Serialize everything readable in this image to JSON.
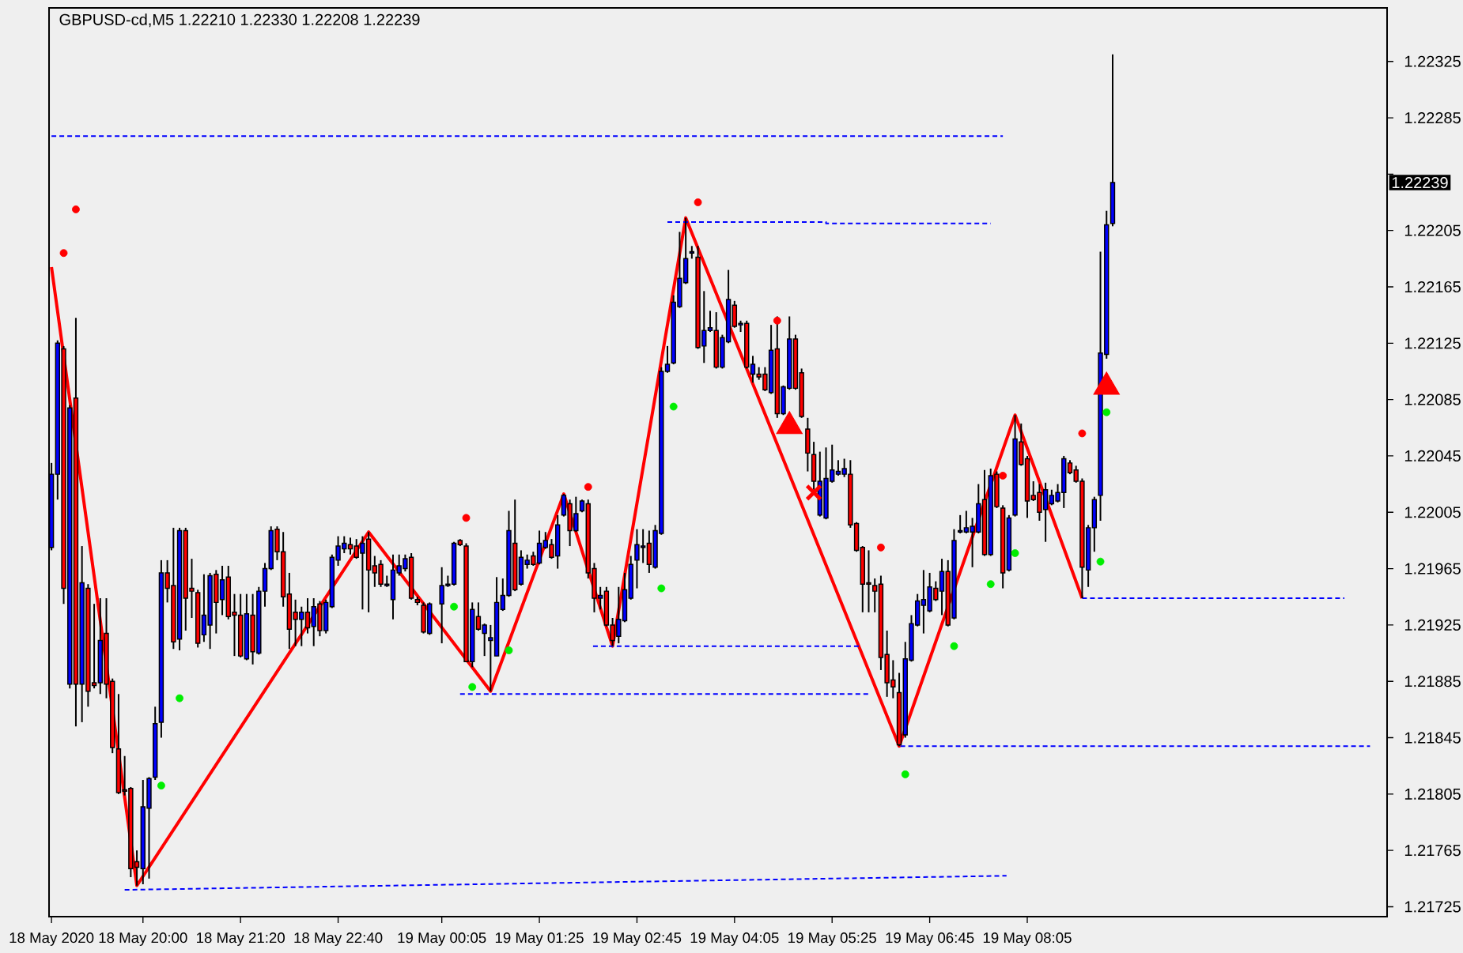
{
  "chart_data": {
    "type": "candlestick",
    "title": "GBPUSD-cd,M5  1.22210 1.22330 1.22208 1.22239",
    "annotations": [
      "1.22239"
    ],
    "xlim": [
      "2020-05-18T18:43",
      "2020-05-19T13:00"
    ],
    "ylim": [
      1.21718,
      1.22363
    ],
    "xticks": [
      {
        "value": "2020-05-18T18:45",
        "label": "18 May 2020"
      },
      {
        "value": "2020-05-18T20:00",
        "label": "18 May 20:00"
      },
      {
        "value": "2020-05-18T21:20",
        "label": "18 May 21:20"
      },
      {
        "value": "2020-05-18T22:40",
        "label": "18 May 22:40"
      },
      {
        "value": "2020-05-19T00:05",
        "label": "19 May 00:05"
      },
      {
        "value": "2020-05-19T01:25",
        "label": "19 May 01:25"
      },
      {
        "value": "2020-05-19T02:45",
        "label": "19 May 02:45"
      },
      {
        "value": "2020-05-19T04:05",
        "label": "19 May 04:05"
      },
      {
        "value": "2020-05-19T05:25",
        "label": "19 May 05:25"
      },
      {
        "value": "2020-05-19T06:45",
        "label": "19 May 06:45"
      },
      {
        "value": "2020-05-19T08:05",
        "label": "19 May 08:05"
      }
    ],
    "yticks": [
      1.21725,
      1.21765,
      1.21805,
      1.21845,
      1.21885,
      1.21925,
      1.21965,
      1.22005,
      1.22045,
      1.22085,
      1.22125,
      1.22165,
      1.22205,
      {
        "value": 1.22245,
        "label": null
      },
      1.22285,
      1.22325
    ],
    "series": [
      {
        "color": "#000000",
        "x": [
          "2020-05-18T18:45",
          "2020-05-18T18:50",
          "2020-05-18T18:55",
          "2020-05-18T19:00",
          "2020-05-18T19:05",
          "2020-05-18T19:10",
          "2020-05-18T19:15",
          "2020-05-18T19:20",
          "2020-05-18T19:25",
          "2020-05-18T19:30",
          "2020-05-18T19:35",
          "2020-05-18T19:40",
          "2020-05-18T19:45",
          "2020-05-18T19:50",
          "2020-05-18T19:55",
          "2020-05-18T20:00",
          "2020-05-18T20:05",
          "2020-05-18T20:10",
          "2020-05-18T20:15",
          "2020-05-18T20:20",
          "2020-05-18T20:25",
          "2020-05-18T20:30",
          "2020-05-18T20:35",
          "2020-05-18T20:40",
          "2020-05-18T20:45",
          "2020-05-18T20:50",
          "2020-05-18T20:55",
          "2020-05-18T21:00",
          "2020-05-18T21:05",
          "2020-05-18T21:10",
          "2020-05-18T21:15",
          "2020-05-18T21:20",
          "2020-05-18T21:25",
          "2020-05-18T21:30",
          "2020-05-18T21:35",
          "2020-05-18T21:40",
          "2020-05-18T21:45",
          "2020-05-18T21:50",
          "2020-05-18T21:55",
          "2020-05-18T22:00",
          "2020-05-18T22:05",
          "2020-05-18T22:10",
          "2020-05-18T22:15",
          "2020-05-18T22:20",
          "2020-05-18T22:25",
          "2020-05-18T22:30",
          "2020-05-18T22:35",
          "2020-05-18T22:40",
          "2020-05-18T22:45",
          "2020-05-18T22:50",
          "2020-05-18T22:55",
          "2020-05-18T23:00",
          "2020-05-18T23:05",
          "2020-05-18T23:10",
          "2020-05-18T23:15",
          "2020-05-18T23:20",
          "2020-05-18T23:25",
          "2020-05-18T23:30",
          "2020-05-18T23:35",
          "2020-05-18T23:40",
          "2020-05-18T23:45",
          "2020-05-18T23:50",
          "2020-05-18T23:55",
          "2020-05-19T00:05",
          "2020-05-19T00:10",
          "2020-05-19T00:15",
          "2020-05-19T00:20",
          "2020-05-19T00:25",
          "2020-05-19T00:30",
          "2020-05-19T00:35",
          "2020-05-19T00:40",
          "2020-05-19T00:45",
          "2020-05-19T00:50",
          "2020-05-19T00:55",
          "2020-05-19T01:00",
          "2020-05-19T01:05",
          "2020-05-19T01:10",
          "2020-05-19T01:15",
          "2020-05-19T01:20",
          "2020-05-19T01:25",
          "2020-05-19T01:30",
          "2020-05-19T01:35",
          "2020-05-19T01:40",
          "2020-05-19T01:45",
          "2020-05-19T01:50",
          "2020-05-19T01:55",
          "2020-05-19T02:00",
          "2020-05-19T02:05",
          "2020-05-19T02:10",
          "2020-05-19T02:15",
          "2020-05-19T02:20",
          "2020-05-19T02:25",
          "2020-05-19T02:30",
          "2020-05-19T02:35",
          "2020-05-19T02:40",
          "2020-05-19T02:45",
          "2020-05-19T02:50",
          "2020-05-19T02:55",
          "2020-05-19T03:00",
          "2020-05-19T03:05",
          "2020-05-19T03:10",
          "2020-05-19T03:15",
          "2020-05-19T03:20",
          "2020-05-19T03:25",
          "2020-05-19T03:30",
          "2020-05-19T03:35",
          "2020-05-19T03:40",
          "2020-05-19T03:45",
          "2020-05-19T03:50",
          "2020-05-19T03:55",
          "2020-05-19T04:00",
          "2020-05-19T04:05",
          "2020-05-19T04:10",
          "2020-05-19T04:15",
          "2020-05-19T04:20",
          "2020-05-19T04:25",
          "2020-05-19T04:30",
          "2020-05-19T04:35",
          "2020-05-19T04:40",
          "2020-05-19T04:45",
          "2020-05-19T04:50",
          "2020-05-19T04:55",
          "2020-05-19T05:00",
          "2020-05-19T05:05",
          "2020-05-19T05:10",
          "2020-05-19T05:15",
          "2020-05-19T05:20",
          "2020-05-19T05:25",
          "2020-05-19T05:30",
          "2020-05-19T05:35",
          "2020-05-19T05:40",
          "2020-05-19T05:45",
          "2020-05-19T05:50",
          "2020-05-19T05:55",
          "2020-05-19T06:00",
          "2020-05-19T06:05",
          "2020-05-19T06:10",
          "2020-05-19T06:15",
          "2020-05-19T06:20",
          "2020-05-19T06:25",
          "2020-05-19T06:30",
          "2020-05-19T06:35",
          "2020-05-19T06:40",
          "2020-05-19T06:45",
          "2020-05-19T06:50",
          "2020-05-19T06:55",
          "2020-05-19T07:00",
          "2020-05-19T07:05",
          "2020-05-19T07:10",
          "2020-05-19T07:15",
          "2020-05-19T07:20",
          "2020-05-19T07:25",
          "2020-05-19T07:30",
          "2020-05-19T07:35",
          "2020-05-19T07:40",
          "2020-05-19T07:45",
          "2020-05-19T07:50",
          "2020-05-19T07:55",
          "2020-05-19T08:00",
          "2020-05-19T08:05",
          "2020-05-19T08:10",
          "2020-05-19T08:15",
          "2020-05-19T08:20",
          "2020-05-19T08:25",
          "2020-05-19T08:30",
          "2020-05-19T08:35",
          "2020-05-19T08:40",
          "2020-05-19T08:45",
          "2020-05-19T08:50",
          "2020-05-19T08:55",
          "2020-05-19T09:00",
          "2020-05-19T09:05",
          "2020-05-19T09:10",
          "2020-05-19T09:15"
        ],
        "ohlc": [
          [
            1.2198,
            1.2204,
            1.21978,
            1.22032
          ],
          [
            1.22032,
            1.22127,
            1.22014,
            1.22125
          ],
          [
            1.22121,
            1.22123,
            1.2194,
            1.21951
          ],
          [
            1.21883,
            1.22081,
            1.2188,
            1.22079
          ],
          [
            1.22086,
            1.22143,
            1.21853,
            1.21883
          ],
          [
            1.21883,
            1.21981,
            1.21856,
            1.21955
          ],
          [
            1.21951,
            1.21954,
            1.21867,
            1.21878
          ],
          [
            1.21884,
            1.2194,
            1.2188,
            1.21882
          ],
          [
            1.21884,
            1.21944,
            1.21876,
            1.21914
          ],
          [
            1.21919,
            1.21944,
            1.21873,
            1.21883
          ],
          [
            1.21885,
            1.21887,
            1.21834,
            1.21838
          ],
          [
            1.21837,
            1.21876,
            1.21805,
            1.21806
          ],
          [
            1.21808,
            1.21832,
            1.21804,
            1.21807
          ],
          [
            1.21809,
            1.2181,
            1.21746,
            1.21752
          ],
          [
            1.21757,
            1.21765,
            1.2174,
            1.21753
          ],
          [
            1.21752,
            1.21815,
            1.21741,
            1.21796
          ],
          [
            1.21795,
            1.21817,
            1.21745,
            1.21816
          ],
          [
            1.21817,
            1.21867,
            1.21815,
            1.21855
          ],
          [
            1.21856,
            1.21971,
            1.21845,
            1.21962
          ],
          [
            1.21962,
            1.21971,
            1.21941,
            1.21951
          ],
          [
            1.21953,
            1.21994,
            1.21908,
            1.21913
          ],
          [
            1.21915,
            1.21994,
            1.21907,
            1.21992
          ],
          [
            1.21992,
            1.21994,
            1.21921,
            1.21944
          ],
          [
            1.21951,
            1.21972,
            1.2193,
            1.21949
          ],
          [
            1.21948,
            1.2195,
            1.21909,
            1.21912
          ],
          [
            1.21918,
            1.21961,
            1.21913,
            1.21932
          ],
          [
            1.21925,
            1.21962,
            1.21908,
            1.2196
          ],
          [
            1.21961,
            1.21964,
            1.21919,
            1.21941
          ],
          [
            1.21943,
            1.21967,
            1.21932,
            1.21957
          ],
          [
            1.21959,
            1.21967,
            1.21929,
            1.21931
          ],
          [
            1.21934,
            1.21947,
            1.21903,
            1.21932
          ],
          [
            1.21932,
            1.21947,
            1.21902,
            1.21903
          ],
          [
            1.21901,
            1.21947,
            1.219,
            1.21933
          ],
          [
            1.21932,
            1.21947,
            1.21897,
            1.21906
          ],
          [
            1.21905,
            1.21952,
            1.21904,
            1.21949
          ],
          [
            1.21949,
            1.21969,
            1.21938,
            1.21965
          ],
          [
            1.21965,
            1.21995,
            1.21964,
            1.21992
          ],
          [
            1.21993,
            1.21995,
            1.21971,
            1.21977
          ],
          [
            1.21977,
            1.21991,
            1.21938,
            1.21945
          ],
          [
            1.21947,
            1.21962,
            1.21908,
            1.21922
          ],
          [
            1.21934,
            1.21943,
            1.2191,
            1.21929
          ],
          [
            1.21929,
            1.21938,
            1.2191,
            1.21934
          ],
          [
            1.21934,
            1.21944,
            1.21919,
            1.21923
          ],
          [
            1.21924,
            1.21944,
            1.2191,
            1.21938
          ],
          [
            1.2194,
            1.21942,
            1.21917,
            1.21921
          ],
          [
            1.21921,
            1.21943,
            1.21919,
            1.21941
          ],
          [
            1.21938,
            1.21975,
            1.21937,
            1.21973
          ],
          [
            1.21971,
            1.21988,
            1.21967,
            1.21981
          ],
          [
            1.21979,
            1.21988,
            1.21976,
            1.21983
          ],
          [
            1.21982,
            1.21987,
            1.21975,
            1.21979
          ],
          [
            1.21981,
            1.21986,
            1.21972,
            1.21973
          ],
          [
            1.21976,
            1.21988,
            1.21936,
            1.21983
          ],
          [
            1.21986,
            1.21991,
            1.21934,
            1.21964
          ],
          [
            1.21967,
            1.21974,
            1.21952,
            1.21962
          ],
          [
            1.21968,
            1.21971,
            1.21952,
            1.21954
          ],
          [
            1.21953,
            1.2196,
            1.21952,
            1.21954
          ],
          [
            1.21943,
            1.21975,
            1.21929,
            1.21964
          ],
          [
            1.21962,
            1.21975,
            1.2196,
            1.21967
          ],
          [
            1.21965,
            1.21975,
            1.21963,
            1.21972
          ],
          [
            1.21973,
            1.21976,
            1.21943,
            1.21944
          ],
          [
            1.21943,
            1.21945,
            1.21939,
            1.21941
          ],
          [
            1.21939,
            1.21941,
            1.21919,
            1.2192
          ],
          [
            1.21919,
            1.21941,
            1.21918,
            1.2194
          ],
          [
            1.2194,
            1.21966,
            1.21912,
            1.21953
          ],
          [
            1.21953,
            1.2196,
            1.21952,
            1.21954
          ],
          [
            1.21954,
            1.21984,
            1.21953,
            1.21983
          ],
          [
            1.21985,
            1.21986,
            1.21981,
            1.21982
          ],
          [
            1.21981,
            1.21983,
            1.21899,
            1.21899
          ],
          [
            1.21899,
            1.21941,
            1.21895,
            1.21936
          ],
          [
            1.21931,
            1.21941,
            1.21921,
            1.21922
          ],
          [
            1.21919,
            1.21926,
            1.21903,
            1.21925
          ],
          [
            1.21914,
            1.21925,
            1.21878,
            1.21916
          ],
          [
            1.21903,
            1.21959,
            1.21903,
            1.21941
          ],
          [
            1.21936,
            1.21958,
            1.21935,
            1.21946
          ],
          [
            1.21946,
            1.22006,
            1.21945,
            1.21992
          ],
          [
            1.21983,
            1.22014,
            1.21949,
            1.2195
          ],
          [
            1.21954,
            1.21978,
            1.21953,
            1.21973
          ],
          [
            1.21968,
            1.21975,
            1.21965,
            1.21971
          ],
          [
            1.21974,
            1.21977,
            1.21967,
            1.21968
          ],
          [
            1.21969,
            1.21992,
            1.21968,
            1.21983
          ],
          [
            1.2198,
            1.21991,
            1.21979,
            1.21985
          ],
          [
            1.21982,
            1.21986,
            1.21972,
            1.21973
          ],
          [
            1.21974,
            1.22003,
            1.21965,
            1.21996
          ],
          [
            1.22003,
            1.22018,
            1.22002,
            1.22017
          ],
          [
            1.22011,
            1.22014,
            1.21981,
            1.21992
          ],
          [
            1.21992,
            1.22016,
            1.21991,
            1.22004
          ],
          [
            1.22006,
            1.22014,
            1.22005,
            1.22013
          ],
          [
            1.22011,
            1.22014,
            1.21958,
            1.21962
          ],
          [
            1.21965,
            1.21969,
            1.21934,
            1.21944
          ],
          [
            1.21944,
            1.21952,
            1.21936,
            1.21946
          ],
          [
            1.21949,
            1.21952,
            1.21924,
            1.21925
          ],
          [
            1.21925,
            1.2193,
            1.2191,
            1.21914
          ],
          [
            1.21917,
            1.21952,
            1.21912,
            1.21929
          ],
          [
            1.21928,
            1.21962,
            1.21927,
            1.2195
          ],
          [
            1.21944,
            1.21974,
            1.21943,
            1.21968
          ],
          [
            1.21971,
            1.21993,
            1.21951,
            1.21982
          ],
          [
            1.2198,
            1.21993,
            1.21969,
            1.21981
          ],
          [
            1.21983,
            1.21992,
            1.21962,
            1.21968
          ],
          [
            1.21966,
            1.21996,
            1.21965,
            1.21992
          ],
          [
            1.2199,
            1.22108,
            1.21989,
            1.22105
          ],
          [
            1.22105,
            1.22123,
            1.22104,
            1.2211
          ],
          [
            1.22111,
            1.22159,
            1.2211,
            1.22154
          ],
          [
            1.22151,
            1.22204,
            1.2215,
            1.22171
          ],
          [
            1.22168,
            1.22214,
            1.22167,
            1.22185
          ],
          [
            1.22189,
            1.22194,
            1.22185,
            1.2219
          ],
          [
            1.22186,
            1.22194,
            1.22121,
            1.22122
          ],
          [
            1.22123,
            1.22162,
            1.22111,
            1.22134
          ],
          [
            1.22134,
            1.22148,
            1.22133,
            1.22136
          ],
          [
            1.22134,
            1.22147,
            1.22107,
            1.22108
          ],
          [
            1.22108,
            1.22131,
            1.22107,
            1.22129
          ],
          [
            1.22126,
            1.22177,
            1.22125,
            1.22156
          ],
          [
            1.22152,
            1.22155,
            1.22136,
            1.22137
          ],
          [
            1.22138,
            1.22141,
            1.22133,
            1.22139
          ],
          [
            1.22139,
            1.22141,
            1.22107,
            1.22108
          ],
          [
            1.22103,
            1.22116,
            1.22097,
            1.2211
          ],
          [
            1.22103,
            1.22108,
            1.22099,
            1.22101
          ],
          [
            1.22103,
            1.22108,
            1.22091,
            1.22092
          ],
          [
            1.2209,
            1.22138,
            1.22089,
            1.2212
          ],
          [
            1.22121,
            1.22144,
            1.22072,
            1.22075
          ],
          [
            1.22075,
            1.22095,
            1.22074,
            1.22094
          ],
          [
            1.22093,
            1.22144,
            1.22092,
            1.22128
          ],
          [
            1.22128,
            1.22131,
            1.22092,
            1.22093
          ],
          [
            1.22104,
            1.22107,
            1.22072,
            1.22073
          ],
          [
            1.22064,
            1.22072,
            1.22034,
            1.22047
          ],
          [
            1.22046,
            1.22055,
            1.22021,
            1.22027
          ],
          [
            1.22003,
            1.22048,
            1.22002,
            1.22027
          ],
          [
            1.22001,
            1.22051,
            1.22,
            1.22029
          ],
          [
            1.22027,
            1.22053,
            1.22026,
            1.22035
          ],
          [
            1.22032,
            1.22042,
            1.22031,
            1.22034
          ],
          [
            1.22032,
            1.22043,
            1.2203,
            1.22036
          ],
          [
            1.22032,
            1.22042,
            1.21994,
            1.21996
          ],
          [
            1.21997,
            1.21998,
            1.21977,
            1.21978
          ],
          [
            1.2198,
            1.21981,
            1.21934,
            1.21954
          ],
          [
            1.21955,
            1.21978,
            1.21934,
            1.21954
          ],
          [
            1.21953,
            1.21958,
            1.21934,
            1.21949
          ],
          [
            1.21954,
            1.2196,
            1.21893,
            1.21902
          ],
          [
            1.21904,
            1.21921,
            1.21874,
            1.21884
          ],
          [
            1.21886,
            1.219,
            1.21873,
            1.21881
          ],
          [
            1.21877,
            1.21891,
            1.21839,
            1.2184
          ],
          [
            1.21847,
            1.21913,
            1.21845,
            1.21901
          ],
          [
            1.219,
            1.21932,
            1.21899,
            1.21926
          ],
          [
            1.21925,
            1.21947,
            1.21924,
            1.21942
          ],
          [
            1.21939,
            1.21964,
            1.21919,
            1.21943
          ],
          [
            1.21935,
            1.21962,
            1.21934,
            1.21952
          ],
          [
            1.21951,
            1.21956,
            1.21942,
            1.21943
          ],
          [
            1.21949,
            1.21972,
            1.21932,
            1.21963
          ],
          [
            1.21963,
            1.21971,
            1.21924,
            1.21925
          ],
          [
            1.2193,
            1.21993,
            1.21929,
            1.21985
          ],
          [
            1.21991,
            1.22003,
            1.2199,
            1.21992
          ],
          [
            1.21991,
            1.22006,
            1.2199,
            1.21994
          ],
          [
            1.21991,
            1.22001,
            1.21966,
            1.21995
          ],
          [
            1.21991,
            1.22025,
            1.2199,
            1.22011
          ],
          [
            1.22014,
            1.22035,
            1.21974,
            1.21975
          ],
          [
            1.21975,
            1.22036,
            1.21974,
            1.22031
          ],
          [
            1.22032,
            1.22034,
            1.22008,
            1.22009
          ],
          [
            1.22008,
            1.2201,
            1.21951,
            1.21962
          ],
          [
            1.21964,
            1.22003,
            1.21963,
            1.22001
          ],
          [
            1.22003,
            1.22074,
            1.22002,
            1.22057
          ],
          [
            1.22055,
            1.22068,
            1.22038,
            1.22039
          ],
          [
            1.22043,
            1.22045,
            1.22001,
            1.22013
          ],
          [
            1.22017,
            1.22027,
            1.22013,
            1.22014
          ],
          [
            1.22019,
            1.22025,
            1.21999,
            1.22005
          ],
          [
            1.22007,
            1.22026,
            1.21984,
            1.22021
          ],
          [
            1.22011,
            1.22021,
            1.2201,
            1.22017
          ],
          [
            1.22013,
            1.22025,
            1.22012,
            1.22019
          ],
          [
            1.22019,
            1.22045,
            1.22008,
            1.22043
          ],
          [
            1.2204,
            1.22042,
            1.22032,
            1.22033
          ],
          [
            1.22035,
            1.22038,
            1.22026,
            1.22027
          ],
          [
            1.22027,
            1.22029,
            1.21944,
            1.21966
          ],
          [
            1.21964,
            1.21996,
            1.21952,
            1.21994
          ],
          [
            1.21994,
            1.22016,
            1.21977,
            1.22014
          ],
          [
            1.22017,
            1.2219,
            1.21999,
            1.22118
          ],
          [
            1.22117,
            1.22219,
            1.22114,
            1.22209
          ],
          [
            1.2221,
            1.2233,
            1.22208,
            1.22239
          ]
        ],
        "colors": [
          "#0000ff",
          "#0000ff",
          "#ff0000",
          "#0000ff",
          "#ff0000",
          "#0000ff",
          "#ff0000",
          "#ff0000",
          "#0000ff",
          "#ff0000",
          "#ff0000",
          "#ff0000",
          "#ff0000",
          "#ff0000",
          "#ff0000",
          "#0000ff",
          "#0000ff",
          "#0000ff",
          "#0000ff",
          "#ff0000",
          "#ff0000",
          "#0000ff",
          "#ff0000",
          "#ff0000",
          "#ff0000",
          "#0000ff",
          "#0000ff",
          "#ff0000",
          "#0000ff",
          "#ff0000",
          "#ff0000",
          "#ff0000",
          "#0000ff",
          "#ff0000",
          "#0000ff",
          "#0000ff",
          "#0000ff",
          "#ff0000",
          "#ff0000",
          "#ff0000",
          "#ff0000",
          "#0000ff",
          "#ff0000",
          "#0000ff",
          "#ff0000",
          "#0000ff",
          "#0000ff",
          "#0000ff",
          "#0000ff",
          "#ff0000",
          "#ff0000",
          "#0000ff",
          "#ff0000",
          "#ff0000",
          "#ff0000",
          "#0000ff",
          "#0000ff",
          "#0000ff",
          "#0000ff",
          "#ff0000",
          "#ff0000",
          "#ff0000",
          "#0000ff",
          "#0000ff",
          "#0000ff",
          "#0000ff",
          "#ff0000",
          "#ff0000",
          "#0000ff",
          "#ff0000",
          "#0000ff",
          "#0000ff",
          "#0000ff",
          "#0000ff",
          "#0000ff",
          "#ff0000",
          "#0000ff",
          "#0000ff",
          "#ff0000",
          "#0000ff",
          "#0000ff",
          "#ff0000",
          "#0000ff",
          "#0000ff",
          "#ff0000",
          "#0000ff",
          "#0000ff",
          "#ff0000",
          "#ff0000",
          "#0000ff",
          "#ff0000",
          "#ff0000",
          "#0000ff",
          "#0000ff",
          "#0000ff",
          "#0000ff",
          "#0000ff",
          "#ff0000",
          "#0000ff",
          "#0000ff",
          "#0000ff",
          "#0000ff",
          "#0000ff",
          "#0000ff",
          "#0000ff",
          "#ff0000",
          "#0000ff",
          "#0000ff",
          "#ff0000",
          "#0000ff",
          "#0000ff",
          "#ff0000",
          "#0000ff",
          "#ff0000",
          "#0000ff",
          "#ff0000",
          "#ff0000",
          "#0000ff",
          "#ff0000",
          "#0000ff",
          "#0000ff",
          "#ff0000",
          "#ff0000",
          "#ff0000",
          "#ff0000",
          "#0000ff",
          "#0000ff",
          "#0000ff",
          "#0000ff",
          "#0000ff",
          "#ff0000",
          "#ff0000",
          "#ff0000",
          "#ff0000",
          "#ff0000",
          "#ff0000",
          "#ff0000",
          "#ff0000",
          "#ff0000",
          "#0000ff",
          "#0000ff",
          "#0000ff",
          "#0000ff",
          "#0000ff",
          "#ff0000",
          "#0000ff",
          "#ff0000",
          "#0000ff",
          "#0000ff",
          "#0000ff",
          "#0000ff",
          "#0000ff",
          "#ff0000",
          "#0000ff",
          "#ff0000",
          "#ff0000",
          "#0000ff",
          "#0000ff",
          "#ff0000",
          "#ff0000",
          "#ff0000",
          "#ff0000",
          "#0000ff",
          "#0000ff",
          "#0000ff",
          "#0000ff",
          "#ff0000",
          "#ff0000",
          "#ff0000",
          "#0000ff",
          "#0000ff",
          "#0000ff",
          "#0000ff",
          "#0000ff"
        ]
      },
      {
        "type": "line",
        "color": "#ff0000",
        "line_style": "solid",
        "x": [
          "2020-05-18T18:45",
          "2020-05-18T19:55",
          "2020-05-18T23:05",
          "2020-05-19T00:45",
          "2020-05-19T01:45",
          "2020-05-19T02:25",
          "2020-05-19T03:25",
          "2020-05-19T06:20",
          "2020-05-19T07:55",
          "2020-05-19T08:50"
        ],
        "values": [
          1.22179,
          1.2174,
          1.21991,
          1.21878,
          1.22018,
          1.2191,
          1.22214,
          1.21839,
          1.22074,
          1.21944
        ]
      },
      {
        "type": "line",
        "color": "#0000ff",
        "line_style": "dashed",
        "x": [
          "2020-05-18T18:45",
          "2020-05-19T07:45"
        ],
        "values": [
          1.22272,
          1.22272
        ]
      },
      {
        "type": "line",
        "color": "#0000ff",
        "line_style": "dashed",
        "x": [
          "2020-05-19T03:10",
          "2020-05-19T05:20",
          "2020-05-19T05:20",
          "2020-05-19T07:35"
        ],
        "values": [
          1.22211,
          1.22211,
          1.2221,
          1.2221
        ]
      },
      {
        "type": "line",
        "color": "#0000ff",
        "line_style": "dashed",
        "x": [
          "2020-05-19T02:09",
          "2020-05-19T05:47"
        ],
        "values": [
          1.2191,
          1.2191
        ]
      },
      {
        "type": "line",
        "color": "#0000ff",
        "line_style": "dashed",
        "x": [
          "2020-05-19T00:20",
          "2020-05-19T05:55"
        ],
        "values": [
          1.21876,
          1.21876
        ]
      },
      {
        "type": "line",
        "color": "#0000ff",
        "line_style": "dashed",
        "x": [
          "2020-05-19T06:21",
          "2020-05-19T12:46"
        ],
        "values": [
          1.21839,
          1.21839
        ]
      },
      {
        "type": "line",
        "color": "#0000ff",
        "line_style": "dashed",
        "x": [
          "2020-05-19T08:50",
          "2020-05-19T12:25"
        ],
        "values": [
          1.21944,
          1.21944
        ]
      },
      {
        "type": "line",
        "color": "#0000ff",
        "line_style": "dashed",
        "x": [
          "2020-05-18T19:45",
          "2020-05-19T07:48"
        ],
        "values": [
          1.21737,
          1.21747
        ]
      },
      {
        "type": "scatter",
        "color": "#ff0000",
        "marker": "circle",
        "x": [
          "2020-05-18T18:55",
          "2020-05-18T19:05",
          "2020-05-19T00:25",
          "2020-05-19T02:05",
          "2020-05-19T03:35",
          "2020-05-19T04:40",
          "2020-05-19T06:05",
          "2020-05-19T07:45",
          "2020-05-19T08:50"
        ],
        "values": [
          1.22189,
          1.2222,
          1.22001,
          1.22023,
          1.22225,
          1.22141,
          1.2198,
          1.22031,
          1.22061
        ]
      },
      {
        "type": "scatter",
        "color": "#00ee00",
        "marker": "circle",
        "x": [
          "2020-05-18T20:15",
          "2020-05-18T20:30",
          "2020-05-19T00:15",
          "2020-05-19T00:30",
          "2020-05-19T01:00",
          "2020-05-19T03:05",
          "2020-05-19T03:15",
          "2020-05-19T06:25",
          "2020-05-19T07:05",
          "2020-05-19T07:35",
          "2020-05-19T07:55",
          "2020-05-19T09:05",
          "2020-05-19T09:10"
        ],
        "values": [
          1.21811,
          1.21873,
          1.21938,
          1.21881,
          1.21907,
          1.21951,
          1.2208,
          1.21819,
          1.2191,
          1.21954,
          1.21976,
          1.2197,
          1.22076
        ]
      },
      {
        "type": "scatter",
        "color": "#ff0000",
        "marker": "triangle",
        "x": [
          "2020-05-19T04:50",
          "2020-05-19T09:10"
        ],
        "values": [
          1.22066,
          1.22094
        ]
      },
      {
        "type": "scatter",
        "color": "#ff0000",
        "marker": "cross",
        "x": [
          "2020-05-19T05:10"
        ],
        "values": [
          1.22019
        ]
      }
    ]
  }
}
